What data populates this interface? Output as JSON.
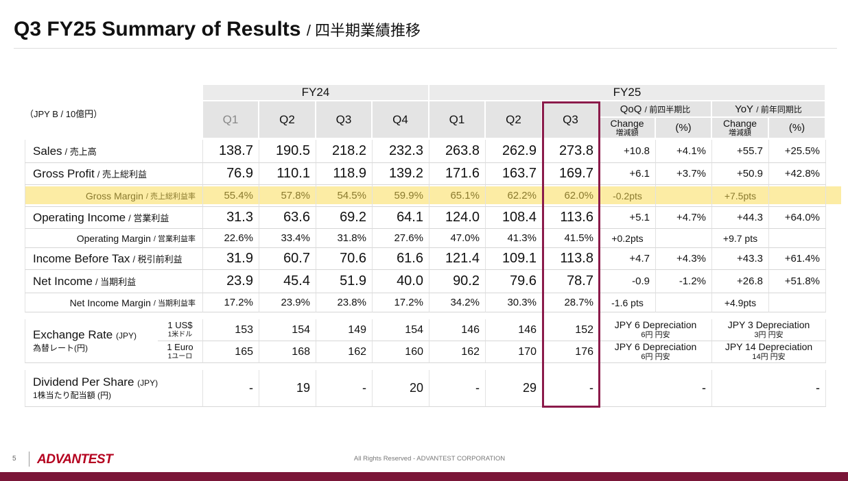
{
  "header": {
    "title": "Q3 FY25 Summary of Results",
    "title_jp": "/ 四半期業績推移"
  },
  "table": {
    "unit": "（JPY B / 10億円）",
    "groups": [
      "FY24",
      "FY25"
    ],
    "quarters": [
      "Q1",
      "Q2",
      "Q3",
      "Q4",
      "Q1",
      "Q2",
      "Q3"
    ],
    "qoq": {
      "label": "QoQ",
      "label_jp": "/ 前四半期比"
    },
    "yoy": {
      "label": "YoY",
      "label_jp": "/ 前年同期比"
    },
    "change_label": "Change",
    "change_label_jp": "増減額",
    "pct_label": "(%)",
    "rows": [
      {
        "label": "Sales",
        "label_jp": "/ 売上高",
        "values": [
          "138.7",
          "190.5",
          "218.2",
          "232.3",
          "263.8",
          "262.9",
          "273.8"
        ],
        "qoq": {
          "change": "+10.8",
          "pct": "+4.1%"
        },
        "yoy": {
          "change": "+55.7",
          "pct": "+25.5%"
        }
      },
      {
        "label": "Gross Profit",
        "label_jp": "/ 売上総利益",
        "values": [
          "76.9",
          "110.1",
          "118.9",
          "139.2",
          "171.6",
          "163.7",
          "169.7"
        ],
        "qoq": {
          "change": "+6.1",
          "pct": "+3.7%"
        },
        "yoy": {
          "change": "+50.9",
          "pct": "+42.8%"
        }
      },
      {
        "label": "Gross Margin",
        "label_jp": "/ 売上総利益率",
        "values": [
          "55.4%",
          "57.8%",
          "54.5%",
          "59.9%",
          "65.1%",
          "62.2%",
          "62.0%"
        ],
        "qoq": {
          "change": "-0.2pts"
        },
        "yoy": {
          "change": "+7.5pts"
        }
      },
      {
        "label": "Operating Income",
        "label_jp": "/ 営業利益",
        "values": [
          "31.3",
          "63.6",
          "69.2",
          "64.1",
          "124.0",
          "108.4",
          "113.6"
        ],
        "qoq": {
          "change": "+5.1",
          "pct": "+4.7%"
        },
        "yoy": {
          "change": "+44.3",
          "pct": "+64.0%"
        }
      },
      {
        "label": "Operating Margin",
        "label_jp": "/ 営業利益率",
        "values": [
          "22.6%",
          "33.4%",
          "31.8%",
          "27.6%",
          "47.0%",
          "41.3%",
          "41.5%"
        ],
        "qoq": {
          "change": "+0.2pts"
        },
        "yoy": {
          "change": "+9.7 pts"
        }
      },
      {
        "label": "Income Before Tax",
        "label_jp": "/ 税引前利益",
        "values": [
          "31.9",
          "60.7",
          "70.6",
          "61.6",
          "121.4",
          "109.1",
          "113.8"
        ],
        "qoq": {
          "change": "+4.7",
          "pct": "+4.3%"
        },
        "yoy": {
          "change": "+43.3",
          "pct": "+61.4%"
        }
      },
      {
        "label": "Net Income",
        "label_jp": "/ 当期利益",
        "values": [
          "23.9",
          "45.4",
          "51.9",
          "40.0",
          "90.2",
          "79.6",
          "78.7"
        ],
        "qoq": {
          "change": "-0.9",
          "pct": "-1.2%"
        },
        "yoy": {
          "change": "+26.8",
          "pct": "+51.8%"
        }
      },
      {
        "label": "Net Income Margin",
        "label_jp": "/ 当期利益率",
        "values": [
          "17.2%",
          "23.9%",
          "23.8%",
          "17.2%",
          "34.2%",
          "30.3%",
          "28.7%"
        ],
        "qoq": {
          "change": "-1.6 pts"
        },
        "yoy": {
          "change": "+4.9pts"
        }
      }
    ]
  },
  "exchange": {
    "label": "Exchange Rate",
    "unit": "(JPY)",
    "label_jp": "為替レート(円)",
    "rows": [
      {
        "currency": "1 US$",
        "currency_jp": "1米ドル",
        "values": [
          "153",
          "154",
          "149",
          "154",
          "146",
          "146",
          "152"
        ],
        "qoq": {
          "text": "JPY 6 Depreciation",
          "jp": "6円 円安"
        },
        "yoy": {
          "text": "JPY 3 Depreciation",
          "jp": "3円 円安"
        }
      },
      {
        "currency": "1 Euro",
        "currency_jp": "1ユーロ",
        "values": [
          "165",
          "168",
          "162",
          "160",
          "162",
          "170",
          "176"
        ],
        "qoq": {
          "text": "JPY 6 Depreciation",
          "jp": "6円 円安"
        },
        "yoy": {
          "text": "JPY 14 Depreciation",
          "jp": "14円 円安"
        }
      }
    ]
  },
  "dividend": {
    "label": "Dividend Per Share",
    "unit": "(JPY)",
    "label_jp": "1株当たり配当額 (円)",
    "values": [
      "-",
      "19",
      "-",
      "20",
      "-",
      "29",
      "-"
    ],
    "qoq": "-",
    "yoy": "-"
  },
  "footer": {
    "page": "5",
    "logo": "ADVANTEST",
    "copyright": "All Rights Reserved - ADVANTEST CORPORATION"
  }
}
